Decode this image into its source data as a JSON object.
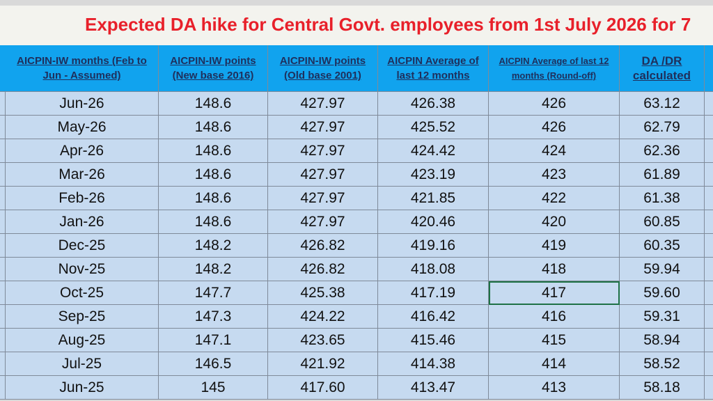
{
  "title": "Expected DA hike for Central Govt. employees from 1st July 2026 for 7",
  "table": {
    "headers": [
      "AICPIN-IW months (Feb to Jun - Assumed)",
      "AICPIN-IW points (New base 2016)",
      "AICPIN-IW points (Old base 2001)",
      "AICPIN Average of last 12 months",
      "AICPIN Average of last 12 months (Round-off)",
      "DA /DR calculated"
    ],
    "rows": [
      [
        "Jun-26",
        "148.6",
        "427.97",
        "426.38",
        "426",
        "63.12"
      ],
      [
        "May-26",
        "148.6",
        "427.97",
        "425.52",
        "426",
        "62.79"
      ],
      [
        "Apr-26",
        "148.6",
        "427.97",
        "424.42",
        "424",
        "62.36"
      ],
      [
        "Mar-26",
        "148.6",
        "427.97",
        "423.19",
        "423",
        "61.89"
      ],
      [
        "Feb-26",
        "148.6",
        "427.97",
        "421.85",
        "422",
        "61.38"
      ],
      [
        "Jan-26",
        "148.6",
        "427.97",
        "420.46",
        "420",
        "60.85"
      ],
      [
        "Dec-25",
        "148.2",
        "426.82",
        "419.16",
        "419",
        "60.35"
      ],
      [
        "Nov-25",
        "148.2",
        "426.82",
        "418.08",
        "418",
        "59.94"
      ],
      [
        "Oct-25",
        "147.7",
        "425.38",
        "417.19",
        "417",
        "59.60"
      ],
      [
        "Sep-25",
        "147.3",
        "424.22",
        "416.42",
        "416",
        "59.31"
      ],
      [
        "Aug-25",
        "147.1",
        "423.65",
        "415.46",
        "415",
        "58.94"
      ],
      [
        "Jul-25",
        "146.5",
        "421.92",
        "414.38",
        "414",
        "58.52"
      ],
      [
        "Jun-25",
        "145",
        "417.60",
        "413.47",
        "413",
        "58.18"
      ]
    ]
  }
}
